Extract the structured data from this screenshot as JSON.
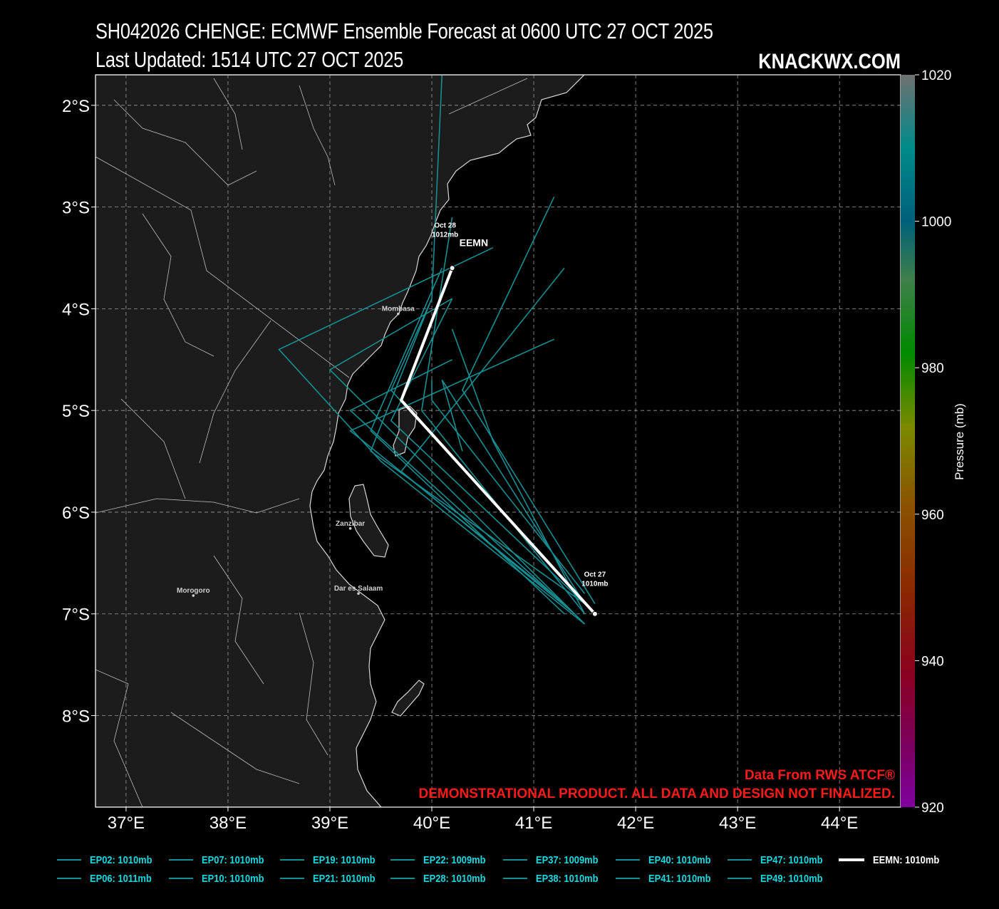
{
  "header": {
    "title_line1": "SH042026 CHENGE: ECMWF Ensemble Forecast at 0600 UTC 27 OCT 2025",
    "title_line2": "Last Updated: 1514 UTC 27 OCT 2025",
    "brand": "KNACKWX.COM"
  },
  "map": {
    "lon_range": [
      36.7,
      44.6
    ],
    "lat_range": [
      -8.9,
      -1.7
    ],
    "lon_ticks": [
      "37°E",
      "38°E",
      "39°E",
      "40°E",
      "41°E",
      "42°E",
      "43°E",
      "44°E"
    ],
    "lat_ticks": [
      "2°S",
      "3°S",
      "4°S",
      "5°S",
      "6°S",
      "7°S",
      "8°S"
    ],
    "gridlines": true,
    "background_land": "#1c1c1c",
    "background_ocean": "#000000",
    "cities": [
      {
        "name": "Mombasa",
        "lon": 39.67,
        "lat": -4.05
      },
      {
        "name": "Zanzibar",
        "lon": 39.2,
        "lat": -6.16
      },
      {
        "name": "Dar es Salaam",
        "lon": 39.28,
        "lat": -6.8
      },
      {
        "name": "Morogoro",
        "lon": 37.66,
        "lat": -6.82
      }
    ]
  },
  "annotations": {
    "start": {
      "line1": "Oct 27",
      "line2": "1010mb"
    },
    "end": {
      "line1": "Oct 28",
      "line2": "1012mb"
    },
    "mean_label": "EEMN"
  },
  "credits": {
    "line1": "Data From RWS ATCF®",
    "line2": "DEMONSTRATIONAL PRODUCT. ALL DATA AND DESIGN NOT FINALIZED."
  },
  "colorbar": {
    "label": "Pressure (mb)",
    "ticks": [
      "1020",
      "1000",
      "980",
      "960",
      "940",
      "920"
    ],
    "range": [
      920,
      1020
    ]
  },
  "colors": {
    "member_track": "#148f93",
    "mean_track": "#ffffff",
    "legend_text": "#19d9e0",
    "credit": "#ff1a1a"
  },
  "chart_data": {
    "type": "line",
    "x_label": "",
    "y_label": "",
    "mean": {
      "name": "EEMN",
      "lon": [
        41.6,
        39.7,
        40.2
      ],
      "lat": [
        -7.0,
        -4.9,
        -3.6
      ]
    },
    "series": [
      {
        "name": "EP02",
        "lon": [
          41.5,
          39.4,
          40.0,
          40.1
        ],
        "lat": [
          -6.9,
          -5.4,
          -3.9,
          -1.7
        ]
      },
      {
        "name": "EP06",
        "lon": [
          41.5,
          39.5,
          38.5,
          40.6
        ],
        "lat": [
          -7.1,
          -5.5,
          -4.4,
          -3.4
        ]
      },
      {
        "name": "EP07",
        "lon": [
          41.4,
          39.2,
          40.2
        ],
        "lat": [
          -7.0,
          -5.0,
          -4.5
        ]
      },
      {
        "name": "EP10",
        "lon": [
          41.6,
          40.3,
          41.2
        ],
        "lat": [
          -6.9,
          -4.8,
          -2.9
        ]
      },
      {
        "name": "EP19",
        "lon": [
          41.5,
          39.9,
          40.2
        ],
        "lat": [
          -7.0,
          -5.0,
          -3.1
        ]
      },
      {
        "name": "EP21",
        "lon": [
          41.4,
          39.7,
          41.3
        ],
        "lat": [
          -7.0,
          -5.6,
          -3.6
        ]
      },
      {
        "name": "EP22",
        "lon": [
          41.3,
          39.2,
          41.2
        ],
        "lat": [
          -6.9,
          -5.2,
          -4.3
        ]
      },
      {
        "name": "EP28",
        "lon": [
          41.5,
          40.0,
          40.0
        ],
        "lat": [
          -6.8,
          -4.9,
          -4.7
        ]
      },
      {
        "name": "EP37",
        "lon": [
          41.5,
          39.0,
          40.2
        ],
        "lat": [
          -7.1,
          -4.6,
          -3.9
        ]
      },
      {
        "name": "EP38",
        "lon": [
          41.3,
          39.4,
          40.1
        ],
        "lat": [
          -7.0,
          -5.2,
          -3.6
        ]
      },
      {
        "name": "EP40",
        "lon": [
          41.5,
          40.1,
          40.3
        ],
        "lat": [
          -6.9,
          -4.7,
          -5.4
        ]
      },
      {
        "name": "EP41",
        "lon": [
          41.5,
          39.6,
          40.0
        ],
        "lat": [
          -6.9,
          -4.8,
          -3.9
        ]
      },
      {
        "name": "EP47",
        "lon": [
          41.5,
          40.6,
          40.2
        ],
        "lat": [
          -7.0,
          -5.3,
          -4.2
        ]
      },
      {
        "name": "EP49",
        "lon": [
          41.5,
          39.6,
          40.2
        ],
        "lat": [
          -6.9,
          -5.1,
          -3.9
        ]
      }
    ]
  },
  "legend": [
    {
      "label": "EP02: 1010mb"
    },
    {
      "label": "EP07: 1010mb"
    },
    {
      "label": "EP19: 1010mb"
    },
    {
      "label": "EP22: 1009mb"
    },
    {
      "label": "EP37: 1009mb"
    },
    {
      "label": "EP40: 1010mb"
    },
    {
      "label": "EP47: 1010mb"
    },
    {
      "label": "EEMN: 1010mb"
    },
    {
      "label": "EP06: 1011mb"
    },
    {
      "label": "EP10: 1010mb"
    },
    {
      "label": "EP21: 1010mb"
    },
    {
      "label": "EP28: 1010mb"
    },
    {
      "label": "EP38: 1010mb"
    },
    {
      "label": "EP41: 1010mb"
    },
    {
      "label": "EP49: 1010mb"
    }
  ]
}
